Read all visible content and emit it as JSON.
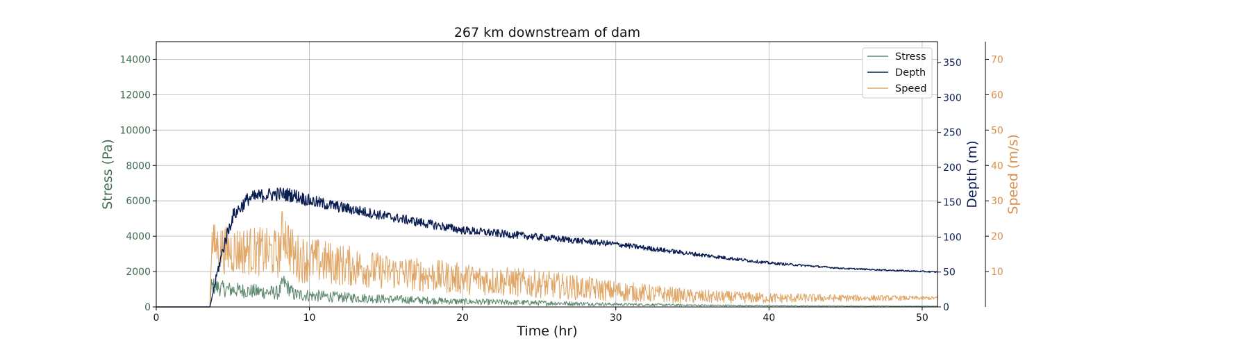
{
  "chart_data": {
    "type": "line",
    "title": "267 km downstream of dam",
    "xlabel": "Time (hr)",
    "xlim": [
      0,
      51
    ],
    "xticks": [
      0,
      10,
      20,
      30,
      40,
      50
    ],
    "grid": true,
    "legend_position": "top-right",
    "axes": [
      {
        "id": "stress",
        "label": "Stress (Pa)",
        "side": "left",
        "color": "#3e6b4e",
        "ylim": [
          0,
          15000
        ],
        "ticks": [
          0,
          2000,
          4000,
          6000,
          8000,
          10000,
          12000,
          14000
        ]
      },
      {
        "id": "depth",
        "label": "Depth (m)",
        "side": "right",
        "color": "#0b1d52",
        "ylim": [
          0,
          380
        ],
        "ticks": [
          0,
          50,
          100,
          150,
          200,
          250,
          300,
          350
        ]
      },
      {
        "id": "speed",
        "label": "Speed (m/s)",
        "side": "right-outer",
        "color": "#d88f4a",
        "ylim": [
          0,
          75
        ],
        "ticks": [
          10,
          20,
          30,
          40,
          50,
          60,
          70
        ]
      }
    ],
    "series": [
      {
        "name": "Stress",
        "axis": "stress",
        "color": "#5f8a70",
        "x": [
          0,
          3.5,
          3.6,
          4.5,
          6,
          8,
          8.3,
          9,
          12,
          15,
          20,
          25,
          30,
          35,
          40,
          45,
          51
        ],
        "values": [
          0,
          0,
          1200,
          1000,
          900,
          800,
          1400,
          700,
          550,
          450,
          300,
          230,
          150,
          100,
          70,
          50,
          40
        ],
        "noise": [
          0,
          0,
          500,
          450,
          420,
          400,
          500,
          380,
          300,
          250,
          180,
          150,
          80,
          50,
          30,
          20,
          15
        ]
      },
      {
        "name": "Depth",
        "axis": "depth",
        "color": "#0b1d52",
        "x": [
          0,
          3.5,
          4,
          4.5,
          5,
          6,
          7,
          8,
          9,
          10,
          12,
          15,
          20,
          25,
          30,
          35,
          40,
          45,
          51
        ],
        "values": [
          0,
          0,
          50,
          95,
          130,
          155,
          160,
          162,
          160,
          152,
          143,
          130,
          110,
          100,
          90,
          76,
          63,
          55,
          50
        ],
        "noise": [
          0,
          0,
          8,
          10,
          10,
          10,
          10,
          10,
          10,
          9,
          8,
          7,
          6,
          5,
          4,
          3,
          2,
          1,
          1
        ]
      },
      {
        "name": "Speed",
        "axis": "speed",
        "color": "#e0a768",
        "x": [
          0,
          3.5,
          3.6,
          4.5,
          6,
          8,
          8.3,
          9,
          12,
          15,
          20,
          25,
          30,
          35,
          40,
          45,
          51
        ],
        "values": [
          0,
          0,
          18,
          16,
          16,
          15,
          22,
          14,
          12,
          10,
          8,
          6.5,
          4.5,
          3,
          2.5,
          2.5,
          2.5
        ],
        "noise": [
          0,
          0,
          6,
          7,
          7,
          7,
          8,
          7,
          6,
          5,
          4.5,
          4,
          3,
          2,
          1.5,
          1,
          0.5
        ]
      }
    ]
  }
}
